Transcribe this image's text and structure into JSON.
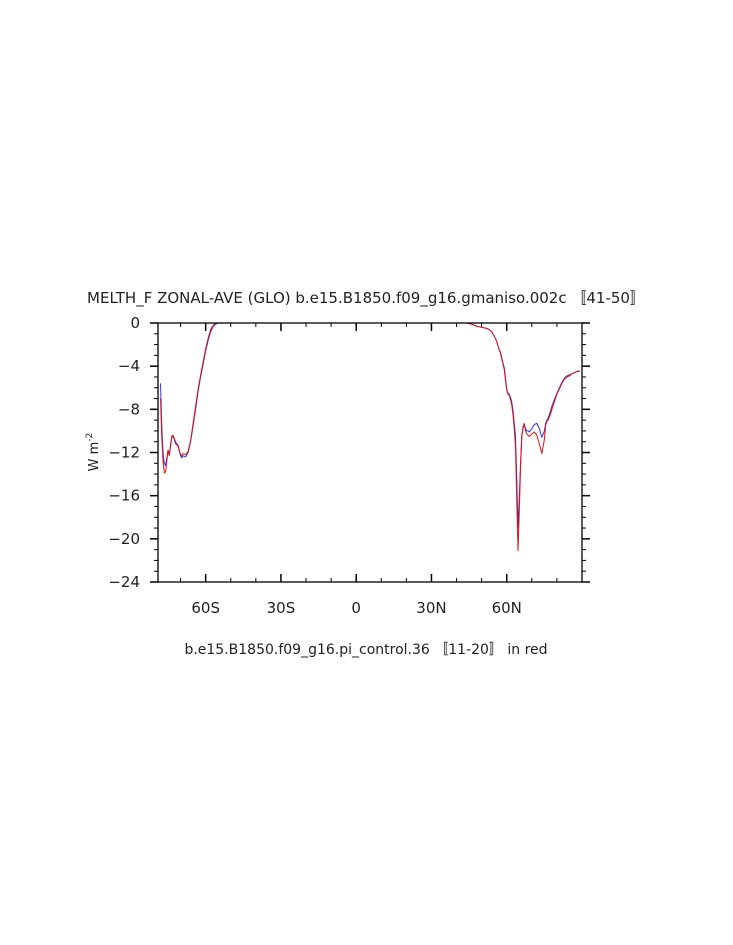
{
  "chart_data": {
    "type": "line",
    "title": "MELTH_F ZONAL-AVE (GLO) b.e15.B1850.f09_g16.gmaniso.002c 〚41-50〛",
    "ylabel": "W m",
    "ylabel_sup": "-2",
    "subtitle": "b.e15.B1850.f09_g16.pi_control.36 〚11-20〛 in red",
    "xlim": [
      -79,
      90
    ],
    "ylim": [
      -24,
      0
    ],
    "x_ticks": [
      {
        "value": -60,
        "label": "60S"
      },
      {
        "value": -30,
        "label": "30S"
      },
      {
        "value": 0,
        "label": "0"
      },
      {
        "value": 30,
        "label": "30N"
      },
      {
        "value": 60,
        "label": "60N"
      }
    ],
    "y_ticks": [
      {
        "value": 0,
        "label": "0"
      },
      {
        "value": -4,
        "label": "−4"
      },
      {
        "value": -8,
        "label": "−8"
      },
      {
        "value": -12,
        "label": "−12"
      },
      {
        "value": -16,
        "label": "−16"
      },
      {
        "value": -20,
        "label": "−20"
      },
      {
        "value": -24,
        "label": "−24"
      }
    ],
    "grid": false,
    "legend": "none",
    "series": [
      {
        "color": "#3333dd",
        "segments": [
          {
            "x": [
              -78,
              -77.5,
              -77,
              -76.5,
              -76,
              -75.5,
              -75,
              -74.5,
              -74,
              -73.5,
              -73,
              -72.5,
              -72,
              -71.5,
              -71,
              -70.5,
              -70,
              -69.5,
              -69,
              -68,
              -67,
              -66.5,
              -66,
              -65,
              -64,
              -63,
              -62,
              -61,
              -60,
              -59,
              -58,
              -57,
              -56,
              -55,
              -54,
              -53,
              -52,
              -51.5,
              -51
            ],
            "y": [
              -5.6,
              -9.5,
              -12,
              -13,
              -13.2,
              -12.5,
              -11.8,
              -12.1,
              -11.5,
              -10.6,
              -10.5,
              -10.8,
              -11.2,
              -11.3,
              -11.4,
              -11.9,
              -12.3,
              -12.5,
              -12.3,
              -12.4,
              -12,
              -11.5,
              -11,
              -9.5,
              -8,
              -6.3,
              -5,
              -3.8,
              -2.6,
              -1.6,
              -0.8,
              -0.3,
              -0.1,
              0,
              0,
              0,
              0,
              0,
              0
            ]
          },
          {
            "x": [
              44,
              46,
              48,
              50,
              52,
              53,
              54,
              55,
              56,
              56.5,
              57,
              57.5,
              58,
              58.5,
              59,
              59.5,
              60,
              60.5,
              61,
              61.5,
              62,
              62.5,
              63,
              63.5,
              64,
              64.5,
              65,
              65.5,
              66,
              66.5,
              67,
              67.5,
              68,
              68.5,
              69,
              70,
              71,
              72,
              73,
              74,
              75,
              75.5,
              76,
              76.5,
              77,
              77.5,
              78,
              79,
              80,
              81,
              82,
              83,
              84,
              85,
              86,
              87,
              88,
              89
            ],
            "y": [
              0,
              -0.1,
              -0.3,
              -0.4,
              -0.5,
              -0.6,
              -0.8,
              -1.2,
              -1.7,
              -2.1,
              -2.5,
              -2.7,
              -3.2,
              -3.7,
              -4.1,
              -5.1,
              -6.1,
              -6.5,
              -6.6,
              -6.9,
              -7.3,
              -8.1,
              -9.3,
              -10.5,
              -14.5,
              -18.9,
              -16.2,
              -13,
              -10.4,
              -9.7,
              -9.5,
              -9.8,
              -10,
              -10,
              -10.1,
              -9.8,
              -9.4,
              -9.3,
              -9.8,
              -10.6,
              -10,
              -9.3,
              -9,
              -8.8,
              -8.5,
              -8.1,
              -7.7,
              -7.1,
              -6.5,
              -6,
              -5.5,
              -5.1,
              -4.9,
              -4.8,
              -4.7,
              -4.6,
              -4.5,
              -4.5
            ]
          }
        ]
      },
      {
        "color": "#dd1111",
        "segments": [
          {
            "x": [
              -78,
              -77.5,
              -77,
              -76.5,
              -76,
              -75.5,
              -75,
              -74.5,
              -74,
              -73.5,
              -73,
              -72.5,
              -72,
              -71.5,
              -71,
              -70.5,
              -70,
              -69.5,
              -69,
              -68,
              -67,
              -66.5,
              -66,
              -65,
              -64,
              -63,
              -62,
              -61,
              -60,
              -59,
              -58,
              -57,
              -56,
              -55,
              -54,
              -53,
              -52,
              -51.5,
              -51
            ],
            "y": [
              -7.0,
              -10.5,
              -12.8,
              -13.9,
              -13.8,
              -12.8,
              -11.8,
              -12.3,
              -11.3,
              -10.5,
              -10.4,
              -10.7,
              -11,
              -11.2,
              -11.3,
              -11.8,
              -12.2,
              -12.3,
              -12.1,
              -12.2,
              -11.9,
              -11.4,
              -10.9,
              -9.3,
              -7.7,
              -6.1,
              -4.8,
              -3.6,
              -2.4,
              -1.4,
              -0.6,
              -0.2,
              -0.05,
              0,
              0,
              0,
              0,
              0,
              0
            ]
          },
          {
            "x": [
              44,
              46,
              48,
              50,
              52,
              53,
              54,
              55,
              56,
              56.5,
              57,
              57.5,
              58,
              58.5,
              59,
              59.5,
              60,
              60.5,
              61,
              61.5,
              62,
              62.5,
              63,
              63.5,
              64,
              64.5,
              65,
              65.5,
              66,
              66.5,
              67,
              67.5,
              68,
              68.5,
              69,
              70,
              71,
              72,
              73,
              74,
              75,
              75.5,
              76,
              76.5,
              77,
              77.5,
              78,
              79,
              80,
              81,
              82,
              83,
              84,
              85,
              86,
              87,
              88,
              89
            ],
            "y": [
              0,
              -0.1,
              -0.3,
              -0.4,
              -0.5,
              -0.6,
              -0.8,
              -1.2,
              -1.7,
              -2.1,
              -2.5,
              -2.8,
              -3.3,
              -3.8,
              -4.3,
              -5.3,
              -6.2,
              -6.6,
              -6.7,
              -7.1,
              -7.6,
              -8.5,
              -9.8,
              -11.5,
              -16.5,
              -21.1,
              -17.5,
              -13.5,
              -10.5,
              -9.6,
              -9.3,
              -10,
              -10.3,
              -10.4,
              -10.5,
              -10.3,
              -10.1,
              -10.4,
              -11.2,
              -12.1,
              -10.8,
              -9.5,
              -9.1,
              -9,
              -8.7,
              -8.4,
              -8,
              -7.3,
              -6.6,
              -6.1,
              -5.6,
              -5.2,
              -5,
              -4.9,
              -4.7,
              -4.6,
              -4.5,
              -4.4
            ]
          }
        ]
      }
    ]
  }
}
